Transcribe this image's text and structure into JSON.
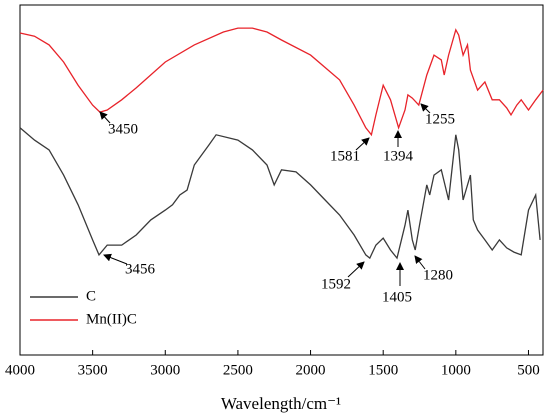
{
  "chart_data": {
    "type": "line",
    "xlabel": "Wavelength/cm⁻¹",
    "xlim": [
      4000,
      400
    ],
    "ylim": [
      0,
      100
    ],
    "xticks": [
      4000,
      3500,
      3000,
      2500,
      2000,
      1500,
      1000,
      500
    ],
    "legend": "lower left",
    "series": [
      {
        "name": "C",
        "color": "#3a3a3a",
        "x": [
          4000,
          3900,
          3800,
          3700,
          3600,
          3500,
          3456,
          3400,
          3300,
          3200,
          3100,
          3000,
          2950,
          2900,
          2850,
          2800,
          2700,
          2650,
          2500,
          2400,
          2300,
          2250,
          2200,
          2100,
          2000,
          1900,
          1800,
          1700,
          1620,
          1592,
          1550,
          1500,
          1450,
          1405,
          1350,
          1330,
          1300,
          1280,
          1250,
          1200,
          1180,
          1150,
          1100,
          1050,
          1000,
          980,
          950,
          900,
          880,
          850,
          800,
          750,
          700,
          650,
          600,
          550,
          500,
          450,
          420
        ],
        "values": [
          64.9,
          61.4,
          58.6,
          51.4,
          42.9,
          32.9,
          28.6,
          31.4,
          31.4,
          34.3,
          38.6,
          41.4,
          42.9,
          45.7,
          47.1,
          54.3,
          60.0,
          62.9,
          61.4,
          58.6,
          54.3,
          48.6,
          52.9,
          52.3,
          48.6,
          44.3,
          40.0,
          34.3,
          28.6,
          27.7,
          31.4,
          33.4,
          30.0,
          27.7,
          37.1,
          41.4,
          32.9,
          30.0,
          37.1,
          48.6,
          45.7,
          51.4,
          52.9,
          44.3,
          62.9,
          58.6,
          44.3,
          51.4,
          38.6,
          35.7,
          32.9,
          30.0,
          32.9,
          30.6,
          29.4,
          28.6,
          41.4,
          45.7,
          32.9
        ]
      },
      {
        "name": "Mn(II)C",
        "color": "#e8232a",
        "x": [
          4000,
          3900,
          3800,
          3700,
          3600,
          3500,
          3450,
          3400,
          3300,
          3200,
          3000,
          2800,
          2600,
          2500,
          2400,
          2300,
          2200,
          2000,
          1800,
          1700,
          1620,
          1581,
          1550,
          1500,
          1450,
          1394,
          1350,
          1330,
          1300,
          1255,
          1200,
          1150,
          1100,
          1080,
          1050,
          1000,
          980,
          950,
          920,
          900,
          850,
          800,
          750,
          700,
          650,
          620,
          580,
          550,
          500,
          450,
          400
        ],
        "values": [
          92.0,
          91.1,
          88.6,
          83.7,
          77.1,
          71.4,
          69.4,
          70.0,
          72.9,
          76.3,
          83.7,
          88.6,
          92.3,
          93.4,
          93.4,
          92.3,
          90.0,
          85.7,
          78.6,
          71.4,
          64.9,
          62.9,
          68.6,
          77.1,
          72.9,
          64.9,
          70.0,
          74.3,
          73.4,
          71.4,
          80.0,
          85.7,
          84.3,
          80.0,
          85.7,
          92.9,
          91.4,
          85.7,
          88.6,
          81.4,
          75.7,
          78.0,
          72.9,
          72.9,
          70.6,
          68.6,
          71.4,
          72.9,
          70.0,
          72.9,
          75.7
        ]
      }
    ],
    "annotations": [
      "3450",
      "1581",
      "1394",
      "1255",
      "3456",
      "1592",
      "1405",
      "1280"
    ]
  }
}
